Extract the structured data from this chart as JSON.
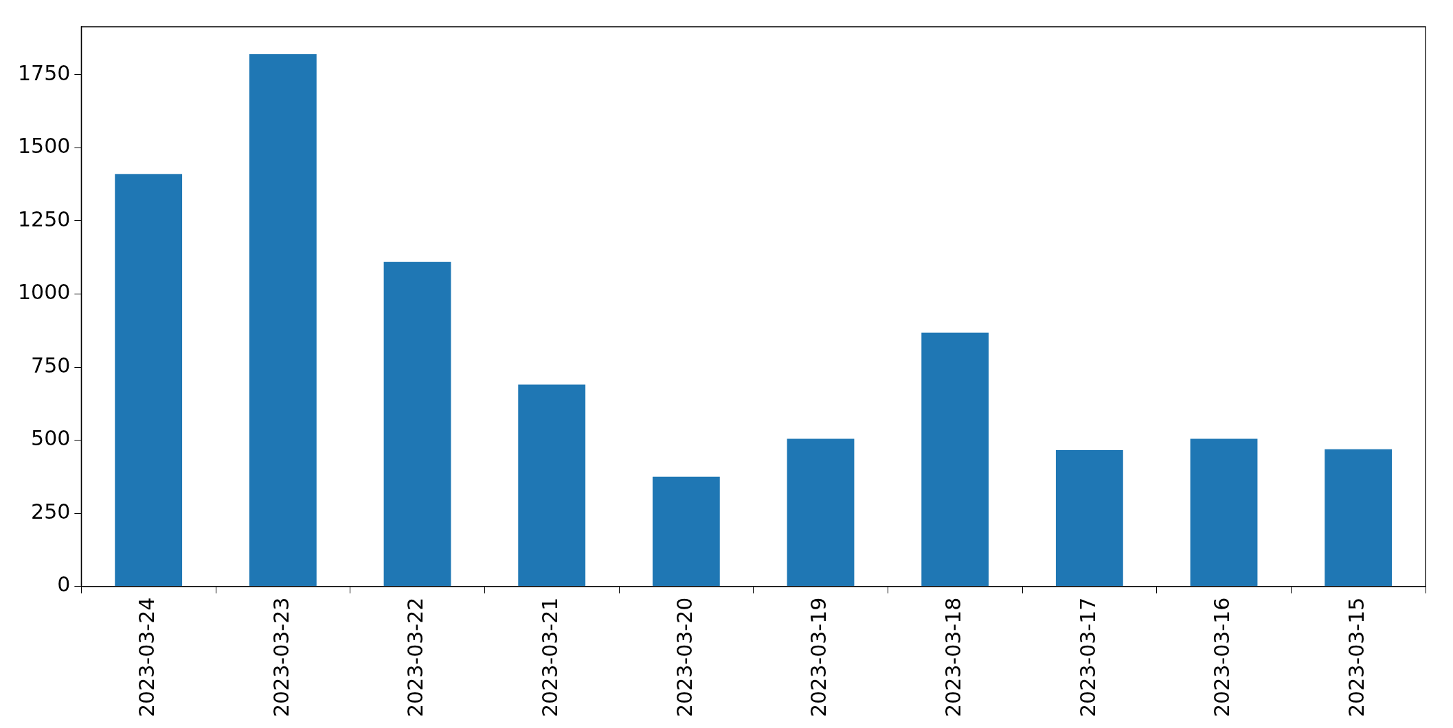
{
  "chart_data": {
    "type": "bar",
    "categories": [
      "2023-03-24",
      "2023-03-23",
      "2023-03-22",
      "2023-03-21",
      "2023-03-20",
      "2023-03-19",
      "2023-03-18",
      "2023-03-17",
      "2023-03-16",
      "2023-03-15"
    ],
    "values": [
      1410,
      1820,
      1110,
      690,
      375,
      505,
      868,
      466,
      505,
      469
    ],
    "color": "#1f77b4",
    "ylim": [
      0,
      1914
    ],
    "yticks": [
      0,
      250,
      500,
      750,
      1000,
      1250,
      1500,
      1750
    ],
    "grid": false,
    "legend": false
  }
}
